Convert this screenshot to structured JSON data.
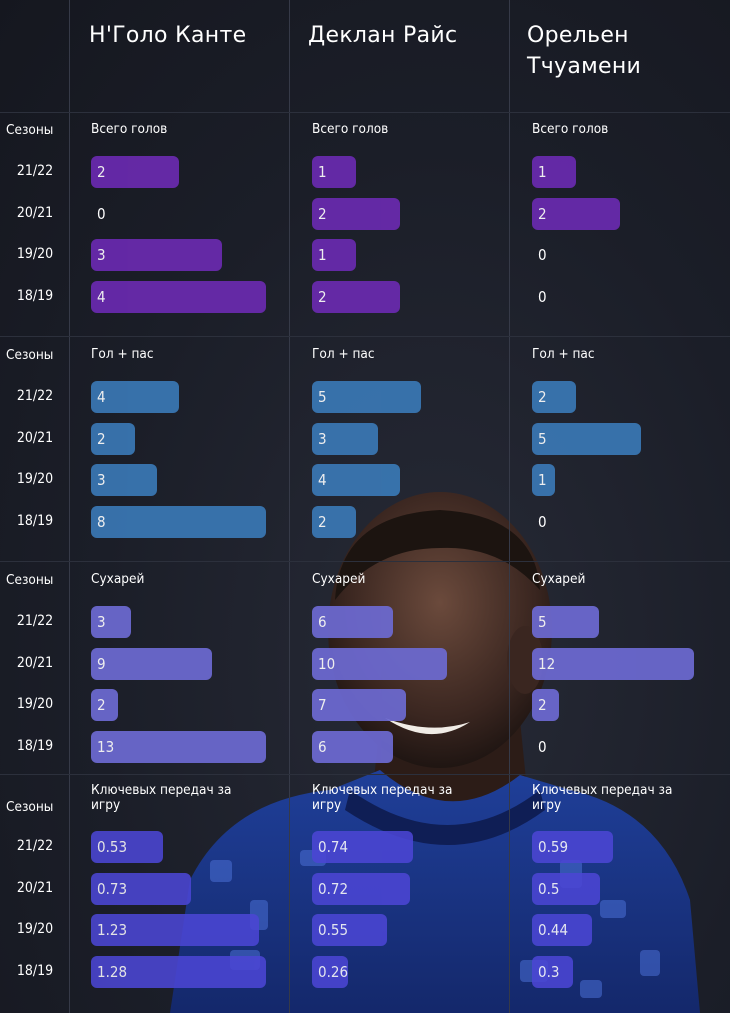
{
  "colors": {
    "background": "#1a1d27",
    "goals_bar": "#6a2ab0",
    "goal_assist_bar": "#3a78b5",
    "clean_sheets_bar": "#6d6ad3",
    "key_passes_bar": "#4b46d4"
  },
  "players": [
    "Н'Голо Канте",
    "Деклан Райс",
    "Орельен Тчуамени"
  ],
  "seasons_label": "Сезоны",
  "seasons": [
    "21/22",
    "20/21",
    "19/20",
    "18/19"
  ],
  "chart_data": {
    "type": "bar",
    "orientation": "horizontal",
    "categories": [
      "21/22",
      "20/21",
      "19/20",
      "18/19"
    ],
    "panels": [
      {
        "metric": "Всего голов",
        "color": "#6a2ab0",
        "series": [
          {
            "name": "Н'Голо Канте",
            "values": [
              2,
              0,
              3,
              4
            ],
            "labels": [
              "2",
              "0",
              "3",
              "4"
            ]
          },
          {
            "name": "Деклан Райс",
            "values": [
              1,
              2,
              1,
              2
            ],
            "labels": [
              "1",
              "2",
              "1",
              "2"
            ]
          },
          {
            "name": "Орельен Тчуамени",
            "values": [
              1,
              2,
              0,
              0
            ],
            "labels": [
              "1",
              "2",
              "0",
              "0"
            ]
          }
        ]
      },
      {
        "metric": "Гол + пас",
        "color": "#3a78b5",
        "series": [
          {
            "name": "Н'Голо Канте",
            "values": [
              4,
              2,
              3,
              8
            ],
            "labels": [
              "4",
              "2",
              "3",
              "8"
            ]
          },
          {
            "name": "Деклан Райс",
            "values": [
              5,
              3,
              4,
              2
            ],
            "labels": [
              "5",
              "3",
              "4",
              "2"
            ]
          },
          {
            "name": "Орельен Тчуамени",
            "values": [
              2,
              5,
              1,
              0
            ],
            "labels": [
              "2",
              "5",
              "1",
              "0"
            ]
          }
        ]
      },
      {
        "metric": "Сухарей",
        "color": "#6d6ad3",
        "series": [
          {
            "name": "Н'Голо Канте",
            "values": [
              3,
              9,
              2,
              13
            ],
            "labels": [
              "3",
              "9",
              "2",
              "13"
            ]
          },
          {
            "name": "Деклан Райс",
            "values": [
              6,
              10,
              7,
              6
            ],
            "labels": [
              "6",
              "10",
              "7",
              "6"
            ]
          },
          {
            "name": "Орельен Тчуамени",
            "values": [
              5,
              12,
              2,
              0
            ],
            "labels": [
              "5",
              "12",
              "2",
              "0"
            ]
          }
        ]
      },
      {
        "metric": "Ключевых передач за игру",
        "color": "#4b46d4",
        "series": [
          {
            "name": "Н'Голо Канте",
            "values": [
              0.53,
              0.73,
              1.23,
              1.28
            ],
            "labels": [
              "0.53",
              "0.73",
              "1.23",
              "1.28"
            ]
          },
          {
            "name": "Деклан Райс",
            "values": [
              0.74,
              0.72,
              0.55,
              0.26
            ],
            "labels": [
              "0.74",
              "0.72",
              "0.55",
              "0.26"
            ]
          },
          {
            "name": "Орельен Тчуамени",
            "values": [
              0.59,
              0.5,
              0.44,
              0.3
            ],
            "labels": [
              "0.59",
              "0.5",
              "0.44",
              "0.3"
            ]
          }
        ]
      }
    ]
  }
}
